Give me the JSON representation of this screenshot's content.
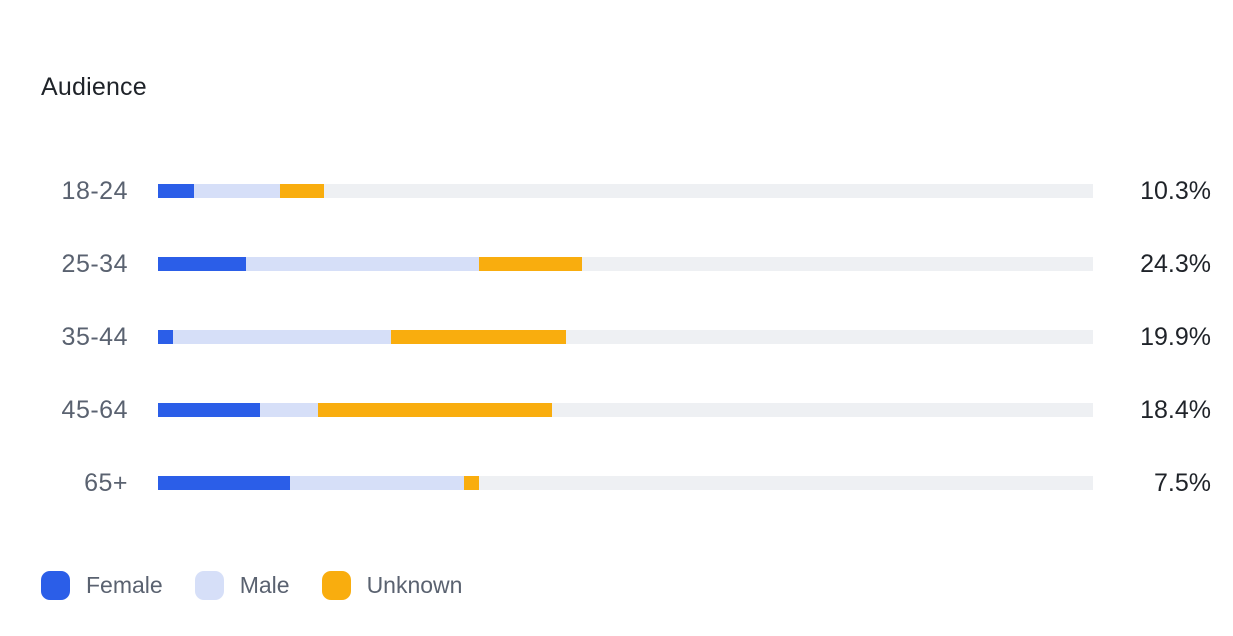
{
  "title": "Audience",
  "colors": {
    "female": "#2b5ee8",
    "male": "#d6dff8",
    "unknown": "#f9ad0e",
    "track": "#eef0f3"
  },
  "legend": [
    {
      "key": "female",
      "label": "Female"
    },
    {
      "key": "male",
      "label": "Male"
    },
    {
      "key": "unknown",
      "label": "Unknown"
    }
  ],
  "chart_data": {
    "type": "bar",
    "stacked": true,
    "orientation": "horizontal",
    "title": "Audience",
    "categories": [
      "18-24",
      "25-34",
      "35-44",
      "45-64",
      "65+"
    ],
    "series": [
      {
        "name": "Female",
        "values": [
          3.9,
          9.4,
          1.6,
          10.9,
          14.1
        ]
      },
      {
        "name": "Male",
        "values": [
          9.2,
          24.9,
          23.3,
          6.2,
          18.6
        ]
      },
      {
        "name": "Unknown",
        "values": [
          4.7,
          11.0,
          18.7,
          25.0,
          1.6
        ]
      }
    ],
    "xlim": [
      0,
      100
    ],
    "value_labels": [
      "10.3%",
      "24.3%",
      "19.9%",
      "18.4%",
      "7.5%"
    ],
    "legend_position": "bottom-left",
    "grid": false
  }
}
